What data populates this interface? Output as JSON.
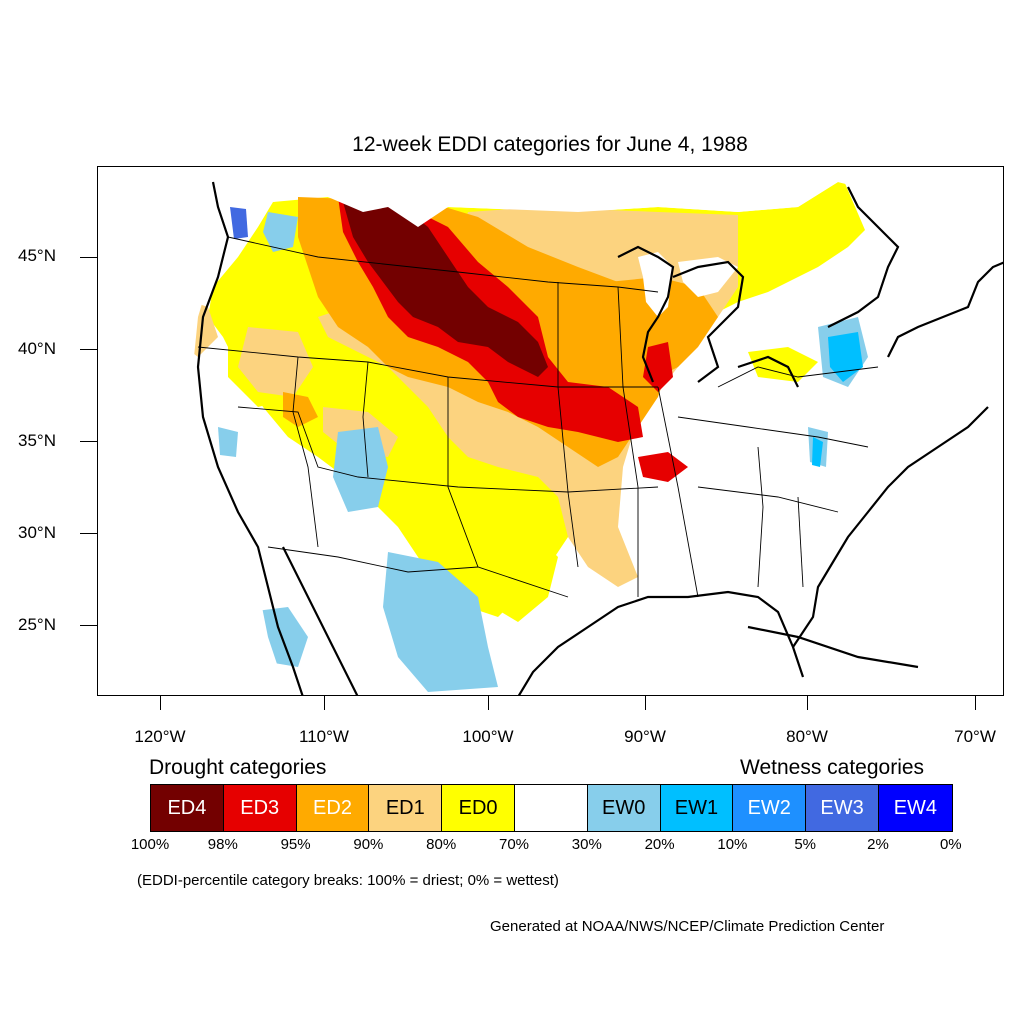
{
  "title": "12-week EDDI categories for June 4, 1988",
  "lat_labels": [
    "45°N",
    "40°N",
    "35°N",
    "30°N",
    "25°N"
  ],
  "lon_labels": [
    "120°W",
    "110°W",
    "100°W",
    "90°W",
    "80°W",
    "70°W"
  ],
  "legend": {
    "drought_header": "Drought categories",
    "wetness_header": "Wetness categories",
    "categories": [
      {
        "label": "ED4",
        "color": "#730000",
        "text_color": "#ffffff"
      },
      {
        "label": "ED3",
        "color": "#e60000",
        "text_color": "#ffffff"
      },
      {
        "label": "ED2",
        "color": "#ffaa00",
        "text_color": "#ffffff"
      },
      {
        "label": "ED1",
        "color": "#fcd37f",
        "text_color": "#000000"
      },
      {
        "label": "ED0",
        "color": "#ffff00",
        "text_color": "#000000"
      },
      {
        "label": "",
        "color": "#ffffff",
        "text_color": "#000000"
      },
      {
        "label": "EW0",
        "color": "#87ceeb",
        "text_color": "#000000"
      },
      {
        "label": "EW1",
        "color": "#00bfff",
        "text_color": "#000000"
      },
      {
        "label": "EW2",
        "color": "#1e90ff",
        "text_color": "#ffffff"
      },
      {
        "label": "EW3",
        "color": "#4169e1",
        "text_color": "#ffffff"
      },
      {
        "label": "EW4",
        "color": "#0000ff",
        "text_color": "#ffffff"
      }
    ],
    "percent_breaks": [
      "100%",
      "98%",
      "95%",
      "90%",
      "80%",
      "70%",
      "30%",
      "20%",
      "10%",
      "5%",
      "2%",
      "0%"
    ]
  },
  "note": "(EDDI-percentile category breaks: 100% = driest; 0% = wettest)",
  "credit": "Generated at NOAA/NWS/NCEP/Climate Prediction Center"
}
